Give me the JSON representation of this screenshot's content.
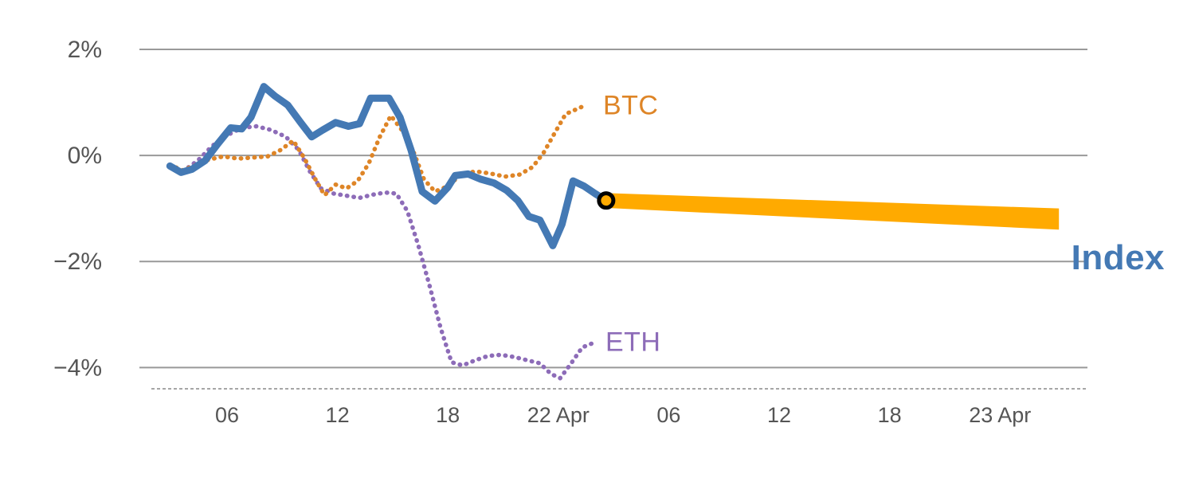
{
  "chart_data": {
    "type": "line",
    "title": "",
    "xlabel": "",
    "ylabel": "",
    "grid": true,
    "background": "#ffffff",
    "grid_color": "#999999",
    "tick_color": "#555555",
    "x_unit": "hours (0 = midnight before first labeled day)",
    "xlim": [
      1.24,
      52.75
    ],
    "ylim": [
      -4.4,
      2.3
    ],
    "yticks": [
      {
        "value": 2,
        "label": "2%"
      },
      {
        "value": 0,
        "label": "0%"
      },
      {
        "value": -2,
        "label": "−2%"
      },
      {
        "value": -4,
        "label": "−4%"
      }
    ],
    "xticks": [
      {
        "h": 6,
        "label": "06"
      },
      {
        "h": 12,
        "label": "12"
      },
      {
        "h": 18,
        "label": "18"
      },
      {
        "h": 24,
        "label": "22 Apr"
      },
      {
        "h": 30,
        "label": "06"
      },
      {
        "h": 36,
        "label": "12"
      },
      {
        "h": 42,
        "label": "18"
      },
      {
        "h": 48,
        "label": "23 Apr"
      }
    ],
    "series": [
      {
        "name": "Index",
        "color": "#4479b4",
        "style": "solid",
        "width": 9,
        "label_pos": {
          "h": 56.95,
          "v": -1.94
        },
        "label_align": "right",
        "points": [
          [
            2.9,
            -0.2
          ],
          [
            3.5,
            -0.32
          ],
          [
            4.1,
            -0.26
          ],
          [
            4.8,
            -0.1
          ],
          [
            5.5,
            0.22
          ],
          [
            6.2,
            0.52
          ],
          [
            6.8,
            0.5
          ],
          [
            7.3,
            0.72
          ],
          [
            8.0,
            1.3
          ],
          [
            8.6,
            1.12
          ],
          [
            9.3,
            0.95
          ],
          [
            10.0,
            0.62
          ],
          [
            10.6,
            0.35
          ],
          [
            11.2,
            0.48
          ],
          [
            11.9,
            0.62
          ],
          [
            12.6,
            0.55
          ],
          [
            13.2,
            0.6
          ],
          [
            13.8,
            1.08
          ],
          [
            14.8,
            1.08
          ],
          [
            15.4,
            0.72
          ],
          [
            16.0,
            0.1
          ],
          [
            16.6,
            -0.68
          ],
          [
            17.3,
            -0.86
          ],
          [
            18.0,
            -0.6
          ],
          [
            18.4,
            -0.38
          ],
          [
            19.1,
            -0.35
          ],
          [
            19.8,
            -0.45
          ],
          [
            20.5,
            -0.52
          ],
          [
            21.2,
            -0.66
          ],
          [
            21.8,
            -0.85
          ],
          [
            22.4,
            -1.15
          ],
          [
            23.0,
            -1.22
          ],
          [
            23.7,
            -1.7
          ],
          [
            24.2,
            -1.3
          ],
          [
            24.8,
            -0.48
          ],
          [
            25.4,
            -0.58
          ],
          [
            26.0,
            -0.72
          ],
          [
            26.6,
            -0.85
          ]
        ]
      },
      {
        "name": "BTC",
        "color": "#de8527",
        "style": "dotted",
        "width": 5.5,
        "label_pos": {
          "h": 26.43,
          "v": 0.93
        },
        "label_align": "left",
        "points": [
          [
            2.9,
            -0.18
          ],
          [
            3.6,
            -0.28
          ],
          [
            4.3,
            -0.18
          ],
          [
            5.0,
            -0.08
          ],
          [
            5.8,
            -0.02
          ],
          [
            6.6,
            -0.06
          ],
          [
            7.4,
            -0.04
          ],
          [
            8.2,
            -0.02
          ],
          [
            8.9,
            0.1
          ],
          [
            9.6,
            0.28
          ],
          [
            10.2,
            -0.05
          ],
          [
            10.8,
            -0.45
          ],
          [
            11.3,
            -0.75
          ],
          [
            11.9,
            -0.55
          ],
          [
            12.5,
            -0.62
          ],
          [
            13.1,
            -0.48
          ],
          [
            13.7,
            -0.15
          ],
          [
            14.3,
            0.35
          ],
          [
            14.9,
            0.75
          ],
          [
            15.5,
            0.48
          ],
          [
            16.1,
            0.1
          ],
          [
            16.7,
            -0.45
          ],
          [
            17.3,
            -0.68
          ],
          [
            18.0,
            -0.58
          ],
          [
            18.7,
            -0.36
          ],
          [
            19.5,
            -0.3
          ],
          [
            20.3,
            -0.34
          ],
          [
            21.1,
            -0.4
          ],
          [
            21.9,
            -0.36
          ],
          [
            22.6,
            -0.22
          ],
          [
            23.2,
            0.05
          ],
          [
            23.8,
            0.42
          ],
          [
            24.4,
            0.78
          ],
          [
            25.3,
            0.92
          ]
        ]
      },
      {
        "name": "ETH",
        "color": "#8d6cb8",
        "style": "dotted",
        "width": 5.5,
        "label_pos": {
          "h": 26.56,
          "v": -3.53
        },
        "label_align": "left",
        "points": [
          [
            2.9,
            -0.22
          ],
          [
            3.6,
            -0.3
          ],
          [
            4.4,
            -0.1
          ],
          [
            5.2,
            0.18
          ],
          [
            6.0,
            0.38
          ],
          [
            6.8,
            0.52
          ],
          [
            7.6,
            0.55
          ],
          [
            8.4,
            0.48
          ],
          [
            9.2,
            0.35
          ],
          [
            9.9,
            0.1
          ],
          [
            10.5,
            -0.3
          ],
          [
            11.1,
            -0.62
          ],
          [
            11.8,
            -0.72
          ],
          [
            12.5,
            -0.76
          ],
          [
            13.2,
            -0.8
          ],
          [
            13.9,
            -0.74
          ],
          [
            14.6,
            -0.7
          ],
          [
            15.2,
            -0.72
          ],
          [
            15.8,
            -1.05
          ],
          [
            16.4,
            -1.7
          ],
          [
            17.0,
            -2.45
          ],
          [
            17.6,
            -3.25
          ],
          [
            18.2,
            -3.9
          ],
          [
            18.8,
            -3.96
          ],
          [
            19.5,
            -3.86
          ],
          [
            20.2,
            -3.78
          ],
          [
            20.9,
            -3.76
          ],
          [
            21.6,
            -3.8
          ],
          [
            22.3,
            -3.86
          ],
          [
            23.0,
            -3.92
          ],
          [
            23.6,
            -4.12
          ],
          [
            24.1,
            -4.2
          ],
          [
            24.7,
            -3.92
          ],
          [
            25.3,
            -3.62
          ],
          [
            25.8,
            -3.55
          ]
        ]
      }
    ],
    "forecast": {
      "name": "Index forecast",
      "color": "#ffaa00",
      "start": {
        "h": 26.6,
        "v": -0.85
      },
      "end": {
        "h": 51.2,
        "v": -1.2
      },
      "half_width_start": 0.14,
      "half_width_end": 0.2,
      "marker": {
        "h": 26.6,
        "v": -0.85,
        "ring_color": "#000000",
        "fill": "#ffaa00"
      }
    }
  }
}
